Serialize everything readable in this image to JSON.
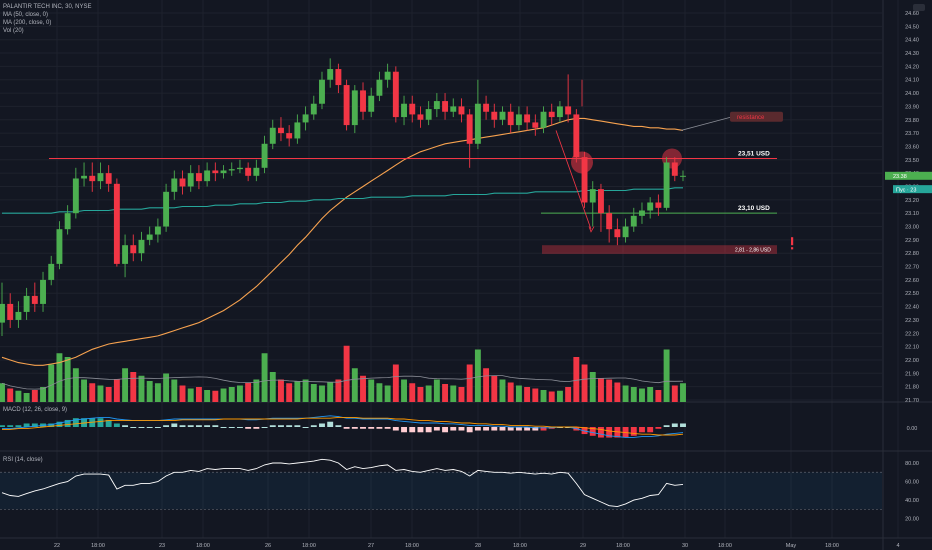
{
  "chart_title": "PALANTIR TECH INC, 30, NYSE",
  "indicators": [
    "MA (50, close, 0)",
    "MA (200, close, 0)",
    "Vol (20)"
  ],
  "macd_label": "MACD (12, 26, close, 9)",
  "rsi_label": "RSI (14, close)",
  "colors": {
    "background": "#131722",
    "up": "#4caf50",
    "down": "#f23645",
    "ma50": "#f7a24f",
    "ma200": "#26a69a",
    "grid": "#1e222d",
    "text": "#b2b5be",
    "macd": "#2196f3",
    "signal": "#ff9800"
  },
  "chart_data": {
    "type": "candlestick",
    "ylim": [
      21.7,
      24.6
    ],
    "price_ticks": [
      "24.60",
      "24.50",
      "24.40",
      "24.30",
      "24.20",
      "24.10",
      "24.00",
      "23.90",
      "23.80",
      "23.70",
      "23.60",
      "23.50",
      "23.40",
      "23.30",
      "23.20",
      "23.10",
      "23.00",
      "22.90",
      "22.80",
      "22.70",
      "22.60",
      "22.50",
      "22.40",
      "22.30",
      "22.20",
      "22.10",
      "22.00",
      "21.90",
      "21.80",
      "21.70"
    ],
    "x_ticks": [
      "22",
      "18:00",
      "23",
      "18:00",
      "26",
      "18:00",
      "27",
      "18:00",
      "28",
      "18:00",
      "29",
      "18:00",
      "30",
      "18:00",
      "May",
      "18:00",
      "4"
    ],
    "candles": [
      [
        22.28,
        22.42,
        22.58,
        22.18
      ],
      [
        22.42,
        22.3,
        22.5,
        22.24
      ],
      [
        22.3,
        22.36,
        22.44,
        22.24
      ],
      [
        22.36,
        22.48,
        22.54,
        22.3
      ],
      [
        22.48,
        22.42,
        22.58,
        22.36
      ],
      [
        22.42,
        22.6,
        22.66,
        22.36
      ],
      [
        22.6,
        22.72,
        22.78,
        22.56
      ],
      [
        22.72,
        22.98,
        23.04,
        22.68
      ],
      [
        22.98,
        23.1,
        23.16,
        22.94
      ],
      [
        23.1,
        23.36,
        23.44,
        23.06
      ],
      [
        23.36,
        23.38,
        23.48,
        23.3
      ],
      [
        23.38,
        23.34,
        23.48,
        23.26
      ],
      [
        23.34,
        23.4,
        23.48,
        23.28
      ],
      [
        23.4,
        23.32,
        23.46,
        23.26
      ],
      [
        23.32,
        22.72,
        23.36,
        22.7
      ],
      [
        22.72,
        22.86,
        22.94,
        22.62
      ],
      [
        22.86,
        22.8,
        22.94,
        22.74
      ],
      [
        22.8,
        22.9,
        22.96,
        22.74
      ],
      [
        22.9,
        22.94,
        23.0,
        22.86
      ],
      [
        22.94,
        23.0,
        23.06,
        22.88
      ],
      [
        23.0,
        23.26,
        23.32,
        22.96
      ],
      [
        23.26,
        23.36,
        23.42,
        23.2
      ],
      [
        23.36,
        23.3,
        23.42,
        23.24
      ],
      [
        23.3,
        23.4,
        23.46,
        23.26
      ],
      [
        23.4,
        23.34,
        23.46,
        23.28
      ],
      [
        23.34,
        23.42,
        23.48,
        23.3
      ],
      [
        23.42,
        23.4,
        23.48,
        23.34
      ],
      [
        23.4,
        23.42,
        23.46,
        23.36
      ],
      [
        23.42,
        23.43,
        23.48,
        23.38
      ],
      [
        23.43,
        23.44,
        23.5,
        23.4
      ],
      [
        23.44,
        23.38,
        23.48,
        23.34
      ],
      [
        23.38,
        23.44,
        23.5,
        23.34
      ],
      [
        23.44,
        23.62,
        23.68,
        23.4
      ],
      [
        23.62,
        23.74,
        23.8,
        23.58
      ],
      [
        23.74,
        23.7,
        23.82,
        23.64
      ],
      [
        23.7,
        23.66,
        23.76,
        23.6
      ],
      [
        23.66,
        23.78,
        23.84,
        23.62
      ],
      [
        23.78,
        23.84,
        23.9,
        23.72
      ],
      [
        23.84,
        23.92,
        23.98,
        23.8
      ],
      [
        23.92,
        24.1,
        24.16,
        23.88
      ],
      [
        24.1,
        24.18,
        24.26,
        24.04
      ],
      [
        24.18,
        24.06,
        24.22,
        24.0
      ],
      [
        24.06,
        23.76,
        24.1,
        23.72
      ],
      [
        23.76,
        24.02,
        24.06,
        23.7
      ],
      [
        24.02,
        23.86,
        24.08,
        23.8
      ],
      [
        23.86,
        23.98,
        24.04,
        23.82
      ],
      [
        23.98,
        24.1,
        24.16,
        23.94
      ],
      [
        24.1,
        24.16,
        24.22,
        24.04
      ],
      [
        24.16,
        23.82,
        24.2,
        23.78
      ],
      [
        23.82,
        23.92,
        23.98,
        23.76
      ],
      [
        23.92,
        23.84,
        23.98,
        23.78
      ],
      [
        23.84,
        23.8,
        23.9,
        23.74
      ],
      [
        23.8,
        23.88,
        23.94,
        23.76
      ],
      [
        23.88,
        23.94,
        24.0,
        23.82
      ],
      [
        23.94,
        23.86,
        24.0,
        23.8
      ],
      [
        23.86,
        23.9,
        23.96,
        23.82
      ],
      [
        23.9,
        23.84,
        23.96,
        23.78
      ],
      [
        23.84,
        23.62,
        23.88,
        23.44
      ],
      [
        23.62,
        23.92,
        24.1,
        23.58
      ],
      [
        23.92,
        23.86,
        23.98,
        23.8
      ],
      [
        23.86,
        23.8,
        23.92,
        23.74
      ],
      [
        23.8,
        23.86,
        23.9,
        23.76
      ],
      [
        23.86,
        23.76,
        23.92,
        23.7
      ],
      [
        23.76,
        23.84,
        23.9,
        23.72
      ],
      [
        23.84,
        23.78,
        23.9,
        23.72
      ],
      [
        23.78,
        23.74,
        23.84,
        23.68
      ],
      [
        23.74,
        23.86,
        23.9,
        23.7
      ],
      [
        23.86,
        23.82,
        23.92,
        23.76
      ],
      [
        23.82,
        23.9,
        23.94,
        23.78
      ],
      [
        23.9,
        23.84,
        24.14,
        23.78
      ],
      [
        23.84,
        23.52,
        23.88,
        23.48
      ],
      [
        23.52,
        23.18,
        23.56,
        23.14
      ],
      [
        23.18,
        23.28,
        23.34,
        23.0
      ],
      [
        23.28,
        23.1,
        23.32,
        22.96
      ],
      [
        23.1,
        22.98,
        23.16,
        22.88
      ],
      [
        22.98,
        22.92,
        23.06,
        22.86
      ],
      [
        22.92,
        23.0,
        23.06,
        22.88
      ],
      [
        23.0,
        23.08,
        23.14,
        22.96
      ],
      [
        23.08,
        23.12,
        23.18,
        23.02
      ],
      [
        23.12,
        23.18,
        23.22,
        23.06
      ],
      [
        23.18,
        23.14,
        23.24,
        23.08
      ],
      [
        23.14,
        23.48,
        23.52,
        23.12
      ],
      [
        23.48,
        23.38,
        23.52,
        23.34
      ],
      [
        23.38,
        23.38,
        23.42,
        23.34
      ]
    ],
    "volume": [
      0.25,
      0.18,
      0.15,
      0.12,
      0.16,
      0.2,
      0.5,
      0.65,
      0.6,
      0.45,
      0.3,
      0.25,
      0.22,
      0.2,
      0.3,
      0.45,
      0.4,
      0.35,
      0.28,
      0.25,
      0.38,
      0.3,
      0.22,
      0.18,
      0.2,
      0.16,
      0.15,
      0.18,
      0.2,
      0.22,
      0.26,
      0.3,
      0.65,
      0.4,
      0.3,
      0.25,
      0.28,
      0.3,
      0.24,
      0.22,
      0.26,
      0.3,
      0.75,
      0.45,
      0.35,
      0.3,
      0.25,
      0.22,
      0.5,
      0.3,
      0.25,
      0.2,
      0.22,
      0.3,
      0.24,
      0.22,
      0.2,
      0.5,
      0.7,
      0.45,
      0.35,
      0.3,
      0.26,
      0.22,
      0.2,
      0.18,
      0.16,
      0.14,
      0.15,
      0.2,
      0.6,
      0.5,
      0.4,
      0.32,
      0.3,
      0.26,
      0.22,
      0.2,
      0.18,
      0.2,
      0.16,
      0.7,
      0.22,
      0.25
    ],
    "ma50": [
      22.02,
      22.0,
      21.98,
      21.97,
      21.96,
      21.96,
      21.97,
      21.98,
      22.0,
      22.02,
      22.05,
      22.08,
      22.1,
      22.12,
      22.13,
      22.14,
      22.15,
      22.16,
      22.17,
      22.18,
      22.2,
      22.22,
      22.24,
      22.26,
      22.28,
      22.31,
      22.34,
      22.37,
      22.41,
      22.45,
      22.5,
      22.55,
      22.61,
      22.67,
      22.73,
      22.79,
      22.86,
      22.92,
      22.99,
      23.06,
      23.12,
      23.17,
      23.22,
      23.26,
      23.3,
      23.34,
      23.38,
      23.42,
      23.46,
      23.5,
      23.53,
      23.56,
      23.58,
      23.6,
      23.62,
      23.63,
      23.64,
      23.65,
      23.66,
      23.67,
      23.68,
      23.69,
      23.7,
      23.71,
      23.72,
      23.73,
      23.74,
      23.76,
      23.78,
      23.8,
      23.81,
      23.81,
      23.8,
      23.79,
      23.78,
      23.77,
      23.76,
      23.75,
      23.75,
      23.74,
      23.74,
      23.73,
      23.73,
      23.72
    ],
    "ma200": [
      23.1,
      23.1,
      23.1,
      23.1,
      23.1,
      23.1,
      23.1,
      23.11,
      23.11,
      23.11,
      23.12,
      23.12,
      23.12,
      23.12,
      23.13,
      23.13,
      23.13,
      23.13,
      23.14,
      23.14,
      23.14,
      23.14,
      23.15,
      23.15,
      23.15,
      23.15,
      23.16,
      23.16,
      23.16,
      23.17,
      23.17,
      23.17,
      23.18,
      23.18,
      23.18,
      23.19,
      23.19,
      23.19,
      23.2,
      23.2,
      23.2,
      23.21,
      23.21,
      23.21,
      23.21,
      23.22,
      23.22,
      23.22,
      23.22,
      23.22,
      23.23,
      23.23,
      23.23,
      23.23,
      23.23,
      23.24,
      23.24,
      23.24,
      23.24,
      23.24,
      23.25,
      23.25,
      23.25,
      23.25,
      23.25,
      23.26,
      23.26,
      23.26,
      23.26,
      23.26,
      23.26,
      23.27,
      23.27,
      23.27,
      23.27,
      23.27,
      23.27,
      23.28,
      23.28,
      23.28,
      23.28,
      23.28,
      23.29,
      23.29
    ],
    "macd": [
      -0.02,
      -0.02,
      -0.01,
      0.0,
      0.01,
      0.02,
      0.03,
      0.05,
      0.07,
      0.09,
      0.1,
      0.11,
      0.12,
      0.12,
      0.1,
      0.09,
      0.08,
      0.08,
      0.08,
      0.08,
      0.09,
      0.1,
      0.1,
      0.1,
      0.1,
      0.1,
      0.1,
      0.1,
      0.1,
      0.1,
      0.09,
      0.09,
      0.1,
      0.11,
      0.11,
      0.11,
      0.11,
      0.11,
      0.12,
      0.13,
      0.14,
      0.13,
      0.11,
      0.11,
      0.1,
      0.1,
      0.1,
      0.1,
      0.08,
      0.07,
      0.06,
      0.05,
      0.05,
      0.05,
      0.04,
      0.04,
      0.03,
      0.02,
      0.02,
      0.02,
      0.01,
      0.01,
      0.0,
      0.0,
      0.0,
      -0.01,
      -0.01,
      -0.01,
      0.0,
      0.0,
      -0.02,
      -0.05,
      -0.07,
      -0.09,
      -0.11,
      -0.12,
      -0.13,
      -0.13,
      -0.12,
      -0.12,
      -0.11,
      -0.09,
      -0.08,
      -0.07
    ],
    "signal": [
      -0.03,
      -0.03,
      -0.02,
      -0.02,
      -0.01,
      0.0,
      0.01,
      0.02,
      0.03,
      0.04,
      0.05,
      0.06,
      0.07,
      0.08,
      0.08,
      0.08,
      0.08,
      0.08,
      0.08,
      0.08,
      0.08,
      0.08,
      0.09,
      0.09,
      0.09,
      0.09,
      0.09,
      0.1,
      0.1,
      0.1,
      0.1,
      0.1,
      0.1,
      0.1,
      0.1,
      0.1,
      0.1,
      0.11,
      0.11,
      0.11,
      0.11,
      0.12,
      0.12,
      0.12,
      0.11,
      0.11,
      0.11,
      0.11,
      0.1,
      0.1,
      0.09,
      0.08,
      0.08,
      0.07,
      0.07,
      0.06,
      0.05,
      0.05,
      0.04,
      0.04,
      0.03,
      0.03,
      0.02,
      0.02,
      0.02,
      0.01,
      0.01,
      0.0,
      0.0,
      0.0,
      0.0,
      -0.01,
      -0.02,
      -0.03,
      -0.05,
      -0.06,
      -0.07,
      -0.08,
      -0.09,
      -0.09,
      -0.1,
      -0.1,
      -0.1,
      -0.09
    ],
    "macd_ticks": [
      "0.00"
    ],
    "rsi": [
      48,
      45,
      44,
      47,
      50,
      52,
      55,
      58,
      60,
      66,
      68,
      68,
      68,
      67,
      52,
      56,
      56,
      58,
      58,
      60,
      66,
      70,
      70,
      72,
      71,
      74,
      73,
      74,
      74,
      74,
      72,
      74,
      78,
      80,
      80,
      79,
      80,
      81,
      82,
      84,
      83,
      80,
      73,
      76,
      74,
      75,
      77,
      78,
      72,
      73,
      71,
      70,
      72,
      74,
      72,
      73,
      71,
      66,
      72,
      71,
      70,
      70,
      69,
      70,
      69,
      68,
      69,
      68,
      70,
      69,
      58,
      46,
      42,
      38,
      34,
      33,
      36,
      40,
      42,
      45,
      46,
      58,
      56,
      57
    ],
    "rsi_ticks": [
      "80.00",
      "60.00",
      "40.00",
      "20.00"
    ],
    "annotations": {
      "resistance_label": "resistance",
      "level_1": "23,51  USD",
      "level_2": "23,10  USD",
      "zone": "2,81 - 2,86 USD",
      "last_price_tag": "23.38",
      "ma_tag": "Пус · 23"
    }
  }
}
